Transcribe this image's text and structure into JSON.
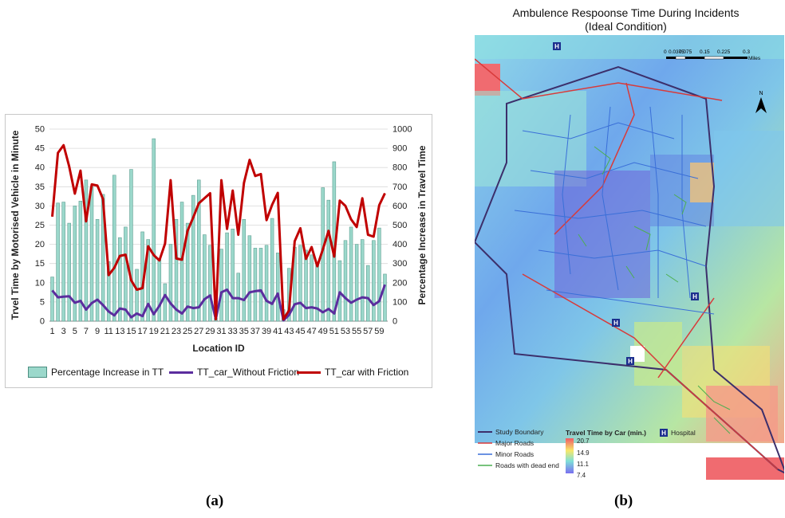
{
  "chart_data": {
    "type": "bar-line",
    "title": "",
    "xlabel": "Location ID",
    "ylabel_left": "Trvel Time by Motorised Vehicle in Minute",
    "ylabel_right": "Percentage Increase in Travel Time",
    "ylim_left": [
      0,
      50
    ],
    "ylim_right": [
      0,
      1000
    ],
    "yticks_left": [
      "0",
      "5",
      "10",
      "15",
      "20",
      "25",
      "30",
      "35",
      "40",
      "45",
      "50"
    ],
    "yticks_right": [
      "0",
      "100",
      "200",
      "300",
      "400",
      "500",
      "600",
      "700",
      "800",
      "900",
      "1000"
    ],
    "x": [
      1,
      2,
      3,
      4,
      5,
      6,
      7,
      8,
      9,
      10,
      11,
      12,
      13,
      14,
      15,
      16,
      17,
      18,
      19,
      20,
      21,
      22,
      23,
      24,
      25,
      26,
      27,
      28,
      29,
      30,
      31,
      32,
      33,
      34,
      35,
      36,
      37,
      38,
      39,
      40,
      41,
      42,
      43,
      44,
      45,
      46,
      47,
      48,
      49,
      50,
      51,
      52,
      53,
      54,
      55,
      56,
      57,
      58,
      59,
      60
    ],
    "xtick_labels": [
      "1",
      "3",
      "5",
      "7",
      "9",
      "11",
      "13",
      "15",
      "17",
      "19",
      "21",
      "23",
      "25",
      "27",
      "29",
      "31",
      "33",
      "35",
      "37",
      "39",
      "41",
      "43",
      "45",
      "47",
      "49",
      "51",
      "53",
      "55",
      "57",
      "59"
    ],
    "legend_position": "bottom",
    "grid": true,
    "series": [
      {
        "name": "Percentage Increase in TT",
        "kind": "bar",
        "axis": "right",
        "color": "#9bd8cb",
        "values": [
          230,
          615,
          620,
          510,
          600,
          625,
          735,
          700,
          530,
          660,
          310,
          760,
          435,
          490,
          790,
          270,
          465,
          425,
          950,
          320,
          195,
          400,
          530,
          620,
          510,
          655,
          735,
          450,
          395,
          15,
          375,
          460,
          480,
          250,
          530,
          445,
          380,
          380,
          395,
          535,
          355,
          60,
          275,
          385,
          395,
          370,
          345,
          305,
          695,
          630,
          830,
          315,
          420,
          490,
          400,
          425,
          290,
          420,
          485,
          245
        ]
      },
      {
        "name": "TT_car_Without Friction",
        "kind": "line",
        "axis": "left",
        "color": "#5b2d9e",
        "values": [
          8,
          6.2,
          6.4,
          6.5,
          4.8,
          5.3,
          3,
          4.7,
          5.6,
          4.2,
          2.5,
          1.5,
          3.3,
          3,
          1,
          2,
          1.3,
          4.5,
          1.8,
          4,
          6.8,
          4.6,
          3,
          2,
          3.8,
          3.4,
          3.6,
          5.7,
          6.7,
          0.5,
          7.5,
          8.2,
          6,
          6,
          5.5,
          7.5,
          7.8,
          8,
          5.3,
          4.5,
          7.2,
          0.2,
          1.6,
          4.4,
          4.8,
          3.4,
          3.6,
          3.3,
          2.3,
          3.2,
          2,
          7.5,
          6,
          4.8,
          5.6,
          6.2,
          6,
          4.2,
          5.2,
          9.5
        ]
      },
      {
        "name": "TT_car with Friction",
        "kind": "line",
        "axis": "left",
        "color": "#c00000",
        "values": [
          27.2,
          43.8,
          45.8,
          40.3,
          33.2,
          39.2,
          26,
          35.6,
          35.3,
          31.8,
          12,
          13.9,
          17,
          17.3,
          10.6,
          8.2,
          8.6,
          19.5,
          17.2,
          15.8,
          20.2,
          36.7,
          16.3,
          16,
          23.5,
          27,
          30.7,
          32,
          33.3,
          0.5,
          36.7,
          24,
          34,
          22.5,
          36,
          42,
          37.8,
          38.3,
          26.3,
          30.3,
          33.4,
          0.5,
          2.8,
          20.8,
          24.2,
          16.2,
          19.3,
          14.3,
          18.7,
          23.5,
          16.8,
          31.4,
          30,
          26.5,
          24.5,
          32,
          22.5,
          22,
          30.2,
          33.3
        ]
      }
    ]
  },
  "map": {
    "title_line1": "Ambulence Respoonse Time During Incidents",
    "title_line2": "(Ideal Condition)",
    "scale_labels": [
      "0",
      "0.0375",
      "0.075",
      "0.15",
      "0.225",
      "0.3"
    ],
    "scale_unit": "Miles",
    "north_label": "N",
    "hospital_marker": "H",
    "legend": {
      "items": [
        "Study Boundary",
        "Major Roads",
        "Minor Roads",
        "Roads with dead end"
      ],
      "colors": [
        "#3c2f6b",
        "#d83a3a",
        "#3a6fd8",
        "#4caf50"
      ],
      "gradient_title": "Travel Time by Car (min.)",
      "gradient_values": [
        "20.7",
        "14.9",
        "11.1",
        "7.4"
      ],
      "hospital_label": "Hospital"
    }
  },
  "panel_labels": {
    "a": "(a)",
    "b": "(b)"
  }
}
